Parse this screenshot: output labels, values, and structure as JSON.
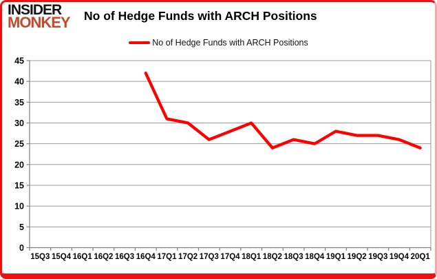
{
  "brand": {
    "line1": "INSIDER",
    "line2": "MONKEY",
    "line1_color": "#121212",
    "line2_color": "#c7492c"
  },
  "header": {
    "title": "No of Hedge Funds with ARCH Positions"
  },
  "legend": {
    "label": "No of Hedge Funds with ARCH Positions",
    "swatch_color": "#ff0000"
  },
  "frame": {
    "border_color": "#ee1111"
  },
  "chart_data": {
    "type": "line",
    "title": "No of Hedge Funds with ARCH Positions",
    "categories": [
      "15Q3",
      "15Q4",
      "16Q1",
      "16Q2",
      "16Q3",
      "16Q4",
      "17Q1",
      "17Q2",
      "17Q3",
      "17Q4",
      "18Q1",
      "18Q2",
      "18Q3",
      "18Q4",
      "19Q1",
      "19Q2",
      "19Q3",
      "19Q4",
      "20Q1"
    ],
    "series": [
      {
        "name": "No of Hedge Funds with ARCH Positions",
        "color": "#ff0000",
        "values": [
          null,
          null,
          null,
          null,
          null,
          42,
          31,
          30,
          26,
          28,
          30,
          24,
          26,
          25,
          28,
          27,
          27,
          26,
          24
        ]
      }
    ],
    "xlabel": "",
    "ylabel": "",
    "ylim": [
      0,
      45
    ],
    "ytick_step": 5,
    "grid": "horizontal",
    "legend_position": "top",
    "grid_color": "#999999",
    "axis_color": "#808080",
    "tick_label_color": "#000000"
  }
}
